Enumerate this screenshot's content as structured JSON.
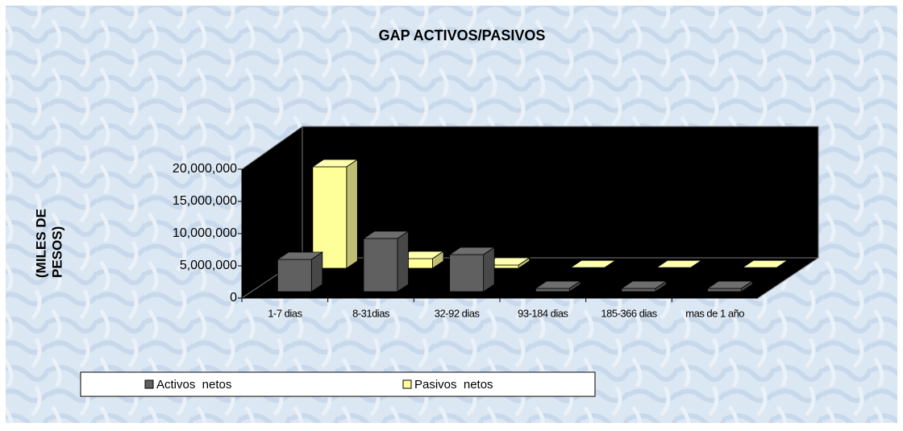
{
  "chart_data": {
    "type": "bar3d",
    "title": "GAP ACTIVOS/PASIVOS",
    "y_label": [
      "(MILES DE",
      "PESOS)"
    ],
    "categories": [
      "1-7 dias",
      "8-31dias",
      "32-92 dias",
      "93-184 dias",
      "185-366 dias",
      "mas de 1 año"
    ],
    "series": [
      {
        "name": "Activos  netos",
        "color": "#606060",
        "values": [
          5000000,
          8250000,
          5750000,
          500000,
          500000,
          500000
        ]
      },
      {
        "name": "Pasivos  netos",
        "color": "#ffff99",
        "values": [
          15750000,
          1500000,
          500000,
          100000,
          100000,
          100000
        ]
      }
    ],
    "ylim": [
      0,
      20000000
    ],
    "yticks": [
      0,
      {
        "value": 5000000,
        "label": "5,000,000"
      },
      {
        "value": 10000000,
        "label": "10,000,000"
      },
      {
        "value": 15000000,
        "label": "15,000,000"
      },
      {
        "value": 20000000,
        "label": "20,000,000"
      }
    ]
  }
}
